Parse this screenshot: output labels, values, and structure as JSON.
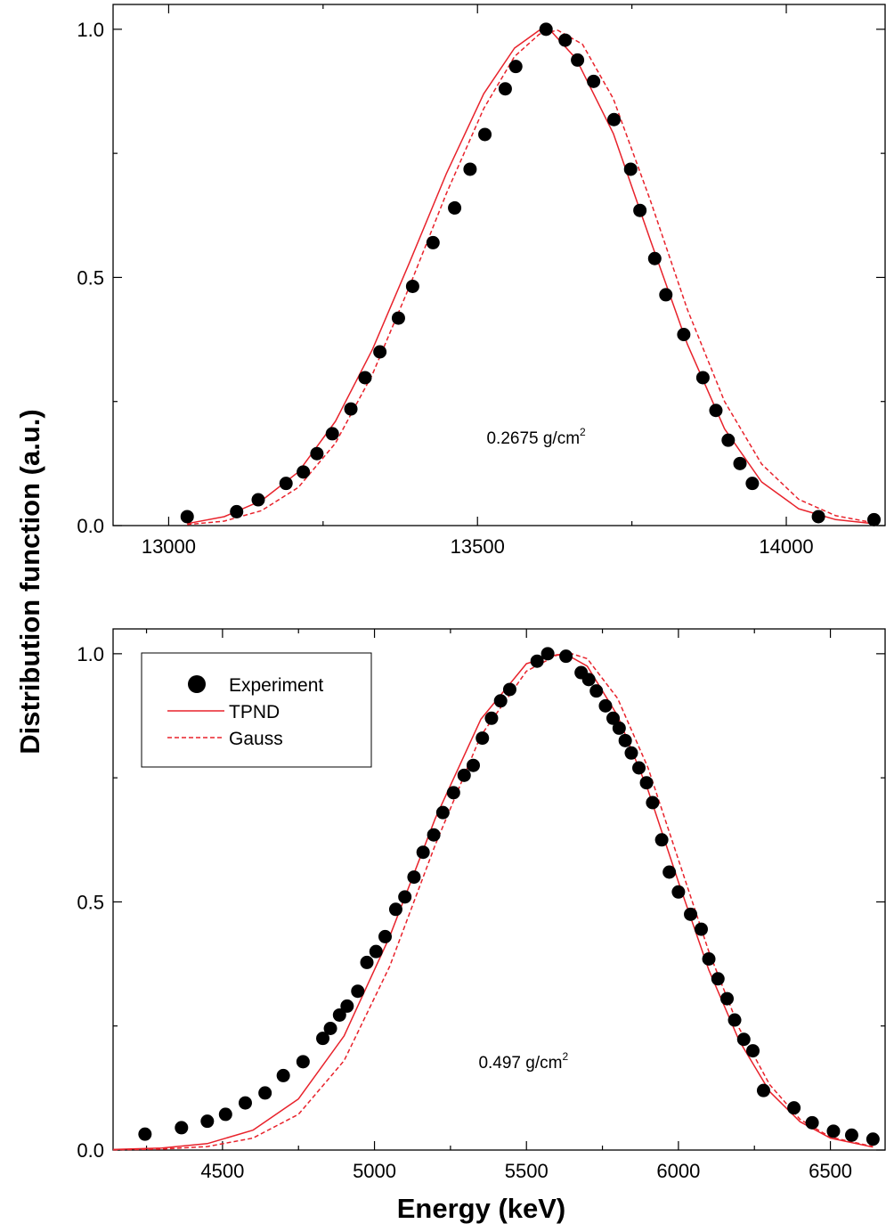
{
  "colors": {
    "fit": "#e8222b",
    "points": "#000000"
  },
  "shared_ylabel": "Distribution function (a.u.)",
  "chart_data": [
    {
      "type": "scatter",
      "title": "",
      "xlabel": "",
      "ylabel": "Distribution function (a.u.)",
      "xlim": [
        12910,
        14160
      ],
      "ylim": [
        0,
        1.05
      ],
      "xticks": [
        13000,
        13500,
        14000
      ],
      "xtick_labels": [
        "13000",
        "13500",
        "14000"
      ],
      "yticks": [
        0,
        0.5,
        1
      ],
      "ytick_labels": [
        "0.0",
        "0.5",
        "1.0"
      ],
      "annotation": {
        "text": "0.2675 g/cm",
        "sup": "2",
        "x": 13595,
        "y": 0.165
      },
      "series": [
        {
          "name": "Experiment",
          "kind": "points",
          "x": [
            13030,
            13110,
            13145,
            13190,
            13218,
            13240,
            13265,
            13295,
            13318,
            13342,
            13372,
            13395,
            13428,
            13463,
            13488,
            13512,
            13545,
            13562,
            13611,
            13642,
            13662,
            13688,
            13721,
            13748,
            13763,
            13787,
            13805,
            13834,
            13865,
            13886,
            13906,
            13925,
            13945,
            14052,
            14142
          ],
          "y": [
            0.018,
            0.028,
            0.052,
            0.085,
            0.108,
            0.145,
            0.185,
            0.235,
            0.298,
            0.35,
            0.418,
            0.482,
            0.57,
            0.64,
            0.718,
            0.788,
            0.88,
            0.925,
            1.0,
            0.978,
            0.938,
            0.895,
            0.818,
            0.718,
            0.635,
            0.538,
            0.465,
            0.385,
            0.298,
            0.232,
            0.172,
            0.125,
            0.085,
            0.018,
            0.012
          ]
        },
        {
          "name": "TPND",
          "kind": "line",
          "style": "solid",
          "x": [
            13030,
            13090,
            13150,
            13210,
            13270,
            13330,
            13390,
            13450,
            13510,
            13560,
            13600,
            13620,
            13660,
            13720,
            13780,
            13840,
            13900,
            13960,
            14020,
            14080,
            14140
          ],
          "y": [
            0.004,
            0.018,
            0.05,
            0.108,
            0.21,
            0.355,
            0.53,
            0.71,
            0.87,
            0.962,
            0.998,
            0.995,
            0.94,
            0.79,
            0.575,
            0.365,
            0.195,
            0.088,
            0.034,
            0.012,
            0.004
          ]
        },
        {
          "name": "Gauss",
          "kind": "line",
          "style": "dashed",
          "x": [
            13030,
            13090,
            13150,
            13210,
            13270,
            13330,
            13390,
            13450,
            13510,
            13560,
            13600,
            13630,
            13670,
            13720,
            13780,
            13840,
            13900,
            13960,
            14020,
            14080,
            14140
          ],
          "y": [
            0.002,
            0.009,
            0.03,
            0.077,
            0.166,
            0.305,
            0.482,
            0.67,
            0.84,
            0.945,
            0.99,
            0.998,
            0.97,
            0.86,
            0.655,
            0.435,
            0.25,
            0.124,
            0.053,
            0.02,
            0.006
          ]
        }
      ]
    },
    {
      "type": "scatter",
      "title": "",
      "xlabel": "Energy (keV)",
      "ylabel": "Distribution function (a.u.)",
      "xlim": [
        4140,
        6680
      ],
      "ylim": [
        0,
        1.05
      ],
      "xticks": [
        4500,
        5000,
        5500,
        6000,
        6500
      ],
      "xtick_labels": [
        "4500",
        "5000",
        "5500",
        "6000",
        "6500"
      ],
      "yticks": [
        0,
        0.5,
        1
      ],
      "ytick_labels": [
        "0.0",
        "0.5",
        "1.0"
      ],
      "annotation": {
        "text": "0.497 g/cm",
        "sup": "2",
        "x": 5490,
        "y": 0.165
      },
      "legend": {
        "position": "top-left"
      },
      "series": [
        {
          "name": "Experiment",
          "kind": "points",
          "x": [
            4245,
            4365,
            4450,
            4510,
            4575,
            4640,
            4700,
            4765,
            4830,
            4855,
            4885,
            4910,
            4945,
            4975,
            5005,
            5035,
            5070,
            5100,
            5130,
            5160,
            5195,
            5225,
            5260,
            5295,
            5325,
            5355,
            5385,
            5415,
            5445,
            5535,
            5570,
            5630,
            5680,
            5705,
            5730,
            5760,
            5785,
            5805,
            5825,
            5845,
            5870,
            5895,
            5915,
            5945,
            5970,
            6000,
            6040,
            6075,
            6100,
            6130,
            6160,
            6185,
            6215,
            6245,
            6280,
            6380,
            6440,
            6510,
            6570,
            6640
          ],
          "y": [
            0.032,
            0.045,
            0.058,
            0.072,
            0.095,
            0.115,
            0.15,
            0.178,
            0.225,
            0.245,
            0.272,
            0.29,
            0.32,
            0.378,
            0.4,
            0.43,
            0.485,
            0.51,
            0.55,
            0.6,
            0.635,
            0.68,
            0.72,
            0.755,
            0.775,
            0.83,
            0.87,
            0.905,
            0.928,
            0.985,
            1.0,
            0.995,
            0.962,
            0.948,
            0.925,
            0.895,
            0.87,
            0.85,
            0.825,
            0.8,
            0.77,
            0.74,
            0.7,
            0.625,
            0.56,
            0.52,
            0.475,
            0.445,
            0.385,
            0.345,
            0.305,
            0.262,
            0.223,
            0.2,
            0.12,
            0.085,
            0.055,
            0.038,
            0.03,
            0.022
          ]
        },
        {
          "name": "TPND",
          "kind": "line",
          "style": "solid",
          "x": [
            4140,
            4300,
            4450,
            4600,
            4750,
            4900,
            5050,
            5200,
            5350,
            5500,
            5600,
            5630,
            5700,
            5800,
            5900,
            6000,
            6100,
            6200,
            6300,
            6400,
            6500,
            6640
          ],
          "y": [
            0.001,
            0.004,
            0.013,
            0.04,
            0.103,
            0.23,
            0.43,
            0.668,
            0.868,
            0.98,
            0.998,
            0.999,
            0.975,
            0.875,
            0.725,
            0.54,
            0.363,
            0.22,
            0.118,
            0.057,
            0.024,
            0.006
          ]
        },
        {
          "name": "Gauss",
          "kind": "line",
          "style": "dashed",
          "x": [
            4140,
            4300,
            4450,
            4600,
            4750,
            4900,
            5050,
            5200,
            5350,
            5500,
            5600,
            5650,
            5700,
            5800,
            5900,
            6000,
            6100,
            6200,
            6300,
            6400,
            6500,
            6640
          ],
          "y": [
            0.0004,
            0.002,
            0.007,
            0.024,
            0.072,
            0.18,
            0.37,
            0.615,
            0.835,
            0.965,
            0.997,
            1.0,
            0.99,
            0.91,
            0.77,
            0.585,
            0.4,
            0.245,
            0.132,
            0.062,
            0.026,
            0.007
          ]
        }
      ]
    }
  ]
}
